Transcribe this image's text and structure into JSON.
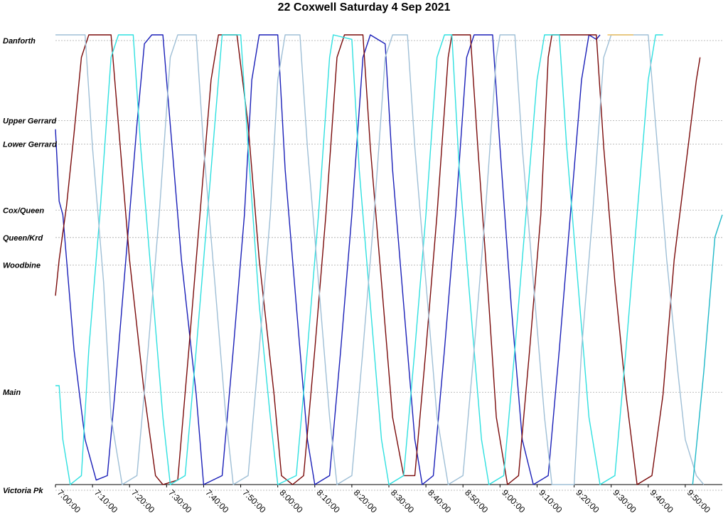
{
  "chart_data": {
    "type": "line",
    "title": "22 Coxwell Saturday 4 Sep 2021",
    "x_range": [
      "7:00:00",
      "10:00:00"
    ],
    "x_ticks": [
      "7:00:00",
      "7:10:00",
      "7:20:00",
      "7:30:00",
      "7:40:00",
      "7:50:00",
      "8:00:00",
      "8:10:00",
      "8:20:00",
      "8:30:00",
      "8:40:00",
      "8:50:00",
      "9:00:00",
      "9:10:00",
      "9:20:00",
      "9:30:00",
      "9:40:00",
      "9:50:00"
    ],
    "y_stops": [
      {
        "name": "Danforth",
        "pos": 1.0
      },
      {
        "name": "Upper Gerrard",
        "pos": 0.822
      },
      {
        "name": "Lower Gerrard",
        "pos": 0.77
      },
      {
        "name": "Cox/Queen",
        "pos": 0.623
      },
      {
        "name": "Queen/Krd",
        "pos": 0.562
      },
      {
        "name": "Woodbine",
        "pos": 0.501
      },
      {
        "name": "Main",
        "pos": 0.218
      },
      {
        "name": "Victoria Pk",
        "pos": 0.0
      }
    ],
    "grid": true,
    "series": [
      {
        "color": "#1a1fb8",
        "points": [
          [
            "7:00:00",
            0.79
          ],
          [
            "7:01:00",
            0.63
          ],
          [
            "7:02:00",
            0.6
          ],
          [
            "7:05:00",
            0.3
          ],
          [
            "7:08:00",
            0.1
          ],
          [
            "7:11:00",
            0.01
          ],
          [
            "7:14:00",
            0.02
          ],
          [
            "7:16:00",
            0.2
          ],
          [
            "7:19:00",
            0.5
          ],
          [
            "7:22:00",
            0.8
          ],
          [
            "7:24:00",
            0.98
          ],
          [
            "7:26:00",
            1.0
          ],
          [
            "7:29:00",
            1.0
          ],
          [
            "7:31:00",
            0.8
          ],
          [
            "7:34:00",
            0.5
          ],
          [
            "7:38:00",
            0.2
          ],
          [
            "7:40:00",
            0.0
          ],
          [
            "7:45:00",
            0.02
          ],
          [
            "7:48:00",
            0.3
          ],
          [
            "7:51:00",
            0.6
          ],
          [
            "7:53:00",
            0.9
          ],
          [
            "7:55:00",
            1.0
          ],
          [
            "8:00:00",
            1.0
          ],
          [
            "8:02:00",
            0.7
          ],
          [
            "8:05:00",
            0.4
          ],
          [
            "8:08:00",
            0.1
          ],
          [
            "8:10:00",
            0.0
          ],
          [
            "8:14:00",
            0.02
          ],
          [
            "8:17:00",
            0.3
          ],
          [
            "8:20:00",
            0.6
          ],
          [
            "8:23:00",
            0.95
          ],
          [
            "8:25:00",
            1.0
          ],
          [
            "8:29:00",
            0.98
          ],
          [
            "8:31:00",
            0.7
          ],
          [
            "8:34:00",
            0.4
          ],
          [
            "8:37:00",
            0.1
          ],
          [
            "8:39:00",
            0.0
          ],
          [
            "8:42:00",
            0.02
          ],
          [
            "8:45:00",
            0.3
          ],
          [
            "8:48:00",
            0.6
          ],
          [
            "8:51:00",
            0.95
          ],
          [
            "8:53:00",
            1.0
          ],
          [
            "8:58:00",
            1.0
          ],
          [
            "9:00:00",
            0.75
          ],
          [
            "9:03:00",
            0.4
          ],
          [
            "9:06:00",
            0.1
          ],
          [
            "9:09:00",
            0.0
          ],
          [
            "9:13:00",
            0.02
          ],
          [
            "9:16:00",
            0.3
          ],
          [
            "9:19:00",
            0.6
          ],
          [
            "9:22:00",
            0.9
          ],
          [
            "9:24:00",
            1.0
          ],
          [
            "9:26:00",
            0.99
          ],
          [
            "9:27:00",
            1.0
          ]
        ]
      },
      {
        "color": "#7a0a0a",
        "points": [
          [
            "7:00:00",
            0.42
          ],
          [
            "7:01:00",
            0.5
          ],
          [
            "7:03:00",
            0.62
          ],
          [
            "7:05:00",
            0.78
          ],
          [
            "7:07:00",
            0.95
          ],
          [
            "7:09:00",
            1.0
          ],
          [
            "7:15:00",
            1.0
          ],
          [
            "7:17:00",
            0.8
          ],
          [
            "7:20:00",
            0.5
          ],
          [
            "7:24:00",
            0.2
          ],
          [
            "7:27:00",
            0.02
          ],
          [
            "7:29:00",
            0.0
          ],
          [
            "7:33:00",
            0.01
          ],
          [
            "7:36:00",
            0.3
          ],
          [
            "7:39:00",
            0.6
          ],
          [
            "7:42:00",
            0.9
          ],
          [
            "7:44:00",
            1.0
          ],
          [
            "7:49:00",
            1.0
          ],
          [
            "7:52:00",
            0.8
          ],
          [
            "7:55:00",
            0.5
          ],
          [
            "7:59:00",
            0.2
          ],
          [
            "8:01:00",
            0.02
          ],
          [
            "8:04:00",
            0.0
          ],
          [
            "8:07:00",
            0.02
          ],
          [
            "8:10:00",
            0.3
          ],
          [
            "8:13:00",
            0.6
          ],
          [
            "8:16:00",
            0.95
          ],
          [
            "8:18:00",
            1.0
          ],
          [
            "8:23:00",
            1.0
          ],
          [
            "8:25:00",
            0.75
          ],
          [
            "8:28:00",
            0.45
          ],
          [
            "8:31:00",
            0.15
          ],
          [
            "8:34:00",
            0.02
          ],
          [
            "8:37:00",
            0.02
          ],
          [
            "8:40:00",
            0.3
          ],
          [
            "8:43:00",
            0.6
          ],
          [
            "8:46:00",
            0.95
          ],
          [
            "8:47:00",
            1.0
          ],
          [
            "8:52:00",
            1.0
          ],
          [
            "8:54:00",
            0.75
          ],
          [
            "8:57:00",
            0.4
          ],
          [
            "8:59:00",
            0.15
          ],
          [
            "9:02:00",
            0.0
          ],
          [
            "9:05:00",
            0.02
          ],
          [
            "9:08:00",
            0.3
          ],
          [
            "9:11:00",
            0.6
          ],
          [
            "9:13:00",
            0.95
          ],
          [
            "9:14:00",
            1.0
          ],
          [
            "9:26:00",
            1.0
          ],
          [
            "9:28:00",
            0.75
          ],
          [
            "9:31:00",
            0.45
          ],
          [
            "9:34:00",
            0.2
          ],
          [
            "9:37:00",
            0.0
          ],
          [
            "9:41:00",
            0.02
          ],
          [
            "9:44:00",
            0.2
          ],
          [
            "9:47:00",
            0.5
          ],
          [
            "9:50:00",
            0.7
          ],
          [
            "9:53:00",
            0.9
          ],
          [
            "9:54:00",
            0.95
          ]
        ]
      },
      {
        "color": "#2fe0e0",
        "points": [
          [
            "7:00:00",
            0.22
          ],
          [
            "7:01:00",
            0.22
          ],
          [
            "7:02:00",
            0.1
          ],
          [
            "7:04:00",
            0.0
          ],
          [
            "7:07:00",
            0.02
          ],
          [
            "7:09:00",
            0.3
          ],
          [
            "7:12:00",
            0.6
          ],
          [
            "7:15:00",
            0.95
          ],
          [
            "7:17:00",
            1.0
          ],
          [
            "7:21:00",
            1.0
          ],
          [
            "7:23:00",
            0.75
          ],
          [
            "7:26:00",
            0.45
          ],
          [
            "7:29:00",
            0.15
          ],
          [
            "7:31:00",
            0.0
          ],
          [
            "7:35:00",
            0.02
          ],
          [
            "7:38:00",
            0.3
          ],
          [
            "7:41:00",
            0.6
          ],
          [
            "7:44:00",
            0.9
          ],
          [
            "7:45:00",
            1.0
          ],
          [
            "7:50:00",
            1.0
          ],
          [
            "7:52:00",
            0.75
          ],
          [
            "7:55:00",
            0.4
          ],
          [
            "7:58:00",
            0.15
          ],
          [
            "8:00:00",
            0.0
          ],
          [
            "8:05:00",
            0.02
          ],
          [
            "8:08:00",
            0.3
          ],
          [
            "8:11:00",
            0.6
          ],
          [
            "8:14:00",
            0.95
          ],
          [
            "8:15:00",
            1.0
          ],
          [
            "8:20:00",
            0.99
          ],
          [
            "8:22:00",
            0.7
          ],
          [
            "8:25:00",
            0.4
          ],
          [
            "8:28:00",
            0.1
          ],
          [
            "8:30:00",
            0.0
          ],
          [
            "8:34:00",
            0.02
          ],
          [
            "8:37:00",
            0.3
          ],
          [
            "8:40:00",
            0.6
          ],
          [
            "8:43:00",
            0.95
          ],
          [
            "8:45:00",
            1.0
          ],
          [
            "8:47:00",
            1.0
          ],
          [
            "8:49:00",
            0.7
          ],
          [
            "8:52:00",
            0.4
          ],
          [
            "8:55:00",
            0.1
          ],
          [
            "8:57:00",
            0.0
          ],
          [
            "9:01:00",
            0.02
          ],
          [
            "9:04:00",
            0.3
          ],
          [
            "9:07:00",
            0.6
          ],
          [
            "9:10:00",
            0.9
          ],
          [
            "9:12:00",
            1.0
          ],
          [
            "9:16:00",
            1.0
          ],
          [
            "9:18:00",
            0.75
          ],
          [
            "9:21:00",
            0.45
          ],
          [
            "9:24:00",
            0.15
          ],
          [
            "9:27:00",
            0.0
          ],
          [
            "9:31:00",
            0.02
          ],
          [
            "9:34:00",
            0.3
          ],
          [
            "9:37:00",
            0.6
          ],
          [
            "9:40:00",
            0.9
          ],
          [
            "9:42:00",
            1.0
          ],
          [
            "9:44:00",
            1.0
          ]
        ]
      },
      {
        "color": "#9fbfd6",
        "points": [
          [
            "7:00:00",
            1.0
          ],
          [
            "7:08:00",
            1.0
          ],
          [
            "7:10:00",
            0.75
          ],
          [
            "7:13:00",
            0.45
          ],
          [
            "7:15:00",
            0.15
          ],
          [
            "7:18:00",
            0.0
          ],
          [
            "7:22:00",
            0.02
          ],
          [
            "7:25:00",
            0.3
          ],
          [
            "7:28:00",
            0.6
          ],
          [
            "7:31:00",
            0.95
          ],
          [
            "7:33:00",
            1.0
          ],
          [
            "7:38:00",
            1.0
          ],
          [
            "7:40:00",
            0.75
          ],
          [
            "7:43:00",
            0.45
          ],
          [
            "7:46:00",
            0.15
          ],
          [
            "7:48:00",
            0.0
          ],
          [
            "7:52:00",
            0.02
          ],
          [
            "7:55:00",
            0.3
          ],
          [
            "7:58:00",
            0.6
          ],
          [
            "8:00:00",
            0.9
          ],
          [
            "8:02:00",
            1.0
          ],
          [
            "8:06:00",
            1.0
          ],
          [
            "8:08:00",
            0.75
          ],
          [
            "8:11:00",
            0.45
          ],
          [
            "8:14:00",
            0.15
          ],
          [
            "8:16:00",
            0.0
          ],
          [
            "8:20:00",
            0.02
          ],
          [
            "8:23:00",
            0.3
          ],
          [
            "8:26:00",
            0.6
          ],
          [
            "8:29:00",
            0.95
          ],
          [
            "8:31:00",
            1.0
          ],
          [
            "8:35:00",
            1.0
          ],
          [
            "8:37:00",
            0.75
          ],
          [
            "8:40:00",
            0.45
          ],
          [
            "8:43:00",
            0.15
          ],
          [
            "8:46:00",
            0.0
          ],
          [
            "8:50:00",
            0.02
          ],
          [
            "8:53:00",
            0.3
          ],
          [
            "8:56:00",
            0.6
          ],
          [
            "8:59:00",
            0.95
          ],
          [
            "9:00:00",
            1.0
          ],
          [
            "9:04:00",
            1.0
          ],
          [
            "9:06:00",
            0.75
          ],
          [
            "9:09:00",
            0.45
          ],
          [
            "9:12:00",
            0.15
          ],
          [
            "9:14:00",
            0.0
          ],
          [
            "9:20:00",
            0.0
          ],
          [
            "9:22:00",
            0.3
          ],
          [
            "9:25:00",
            0.6
          ],
          [
            "9:28:00",
            0.95
          ],
          [
            "9:30:00",
            1.0
          ],
          [
            "9:40:00",
            1.0
          ],
          [
            "9:42:00",
            0.8
          ],
          [
            "9:45:00",
            0.5
          ],
          [
            "9:48:00",
            0.25
          ],
          [
            "9:50:00",
            0.1
          ],
          [
            "9:53:00",
            0.02
          ],
          [
            "9:55:00",
            0.0
          ]
        ]
      },
      {
        "color": "#f0c060",
        "points": [
          [
            "9:29:00",
            1.0
          ],
          [
            "9:36:00",
            1.0
          ]
        ]
      },
      {
        "color": "#1fb8c8",
        "points": [
          [
            "9:52:00",
            0.0
          ],
          [
            "9:55:00",
            0.25
          ],
          [
            "9:58:00",
            0.55
          ],
          [
            "10:00:00",
            0.6
          ]
        ]
      }
    ]
  }
}
